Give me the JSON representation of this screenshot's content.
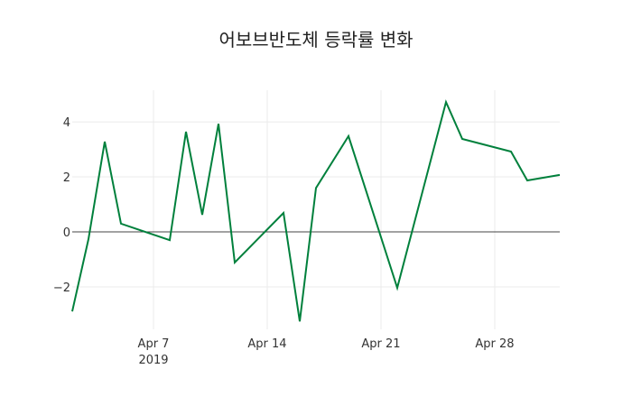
{
  "chart_data": {
    "type": "line",
    "title": "어보브반도체 등락률 변화",
    "xlabel": "",
    "ylabel": "",
    "x": [
      "2019-04-02",
      "2019-04-03",
      "2019-04-04",
      "2019-04-05",
      "2019-04-08",
      "2019-04-09",
      "2019-04-10",
      "2019-04-11",
      "2019-04-12",
      "2019-04-15",
      "2019-04-16",
      "2019-04-17",
      "2019-04-19",
      "2019-04-22",
      "2019-04-25",
      "2019-04-26",
      "2019-04-29",
      "2019-04-30",
      "2019-05-02"
    ],
    "series": [
      {
        "name": "등락률",
        "color": "#00803c",
        "values": [
          -2.89,
          -0.26,
          3.28,
          0.3,
          -0.3,
          3.64,
          0.62,
          3.93,
          -1.11,
          0.69,
          -3.25,
          1.6,
          3.48,
          -2.03,
          4.72,
          3.38,
          2.92,
          1.87,
          2.07
        ]
      }
    ],
    "xlim": [
      "2019-04-02",
      "2019-05-02"
    ],
    "ylim": [
      -3.54,
      5.15
    ],
    "x_ticks": [
      {
        "date": "2019-04-07",
        "label": "Apr 7",
        "sublabel": "2019"
      },
      {
        "date": "2019-04-14",
        "label": "Apr 14",
        "sublabel": ""
      },
      {
        "date": "2019-04-21",
        "label": "Apr 21",
        "sublabel": ""
      },
      {
        "date": "2019-04-28",
        "label": "Apr 28",
        "sublabel": ""
      }
    ],
    "y_ticks": [
      -2,
      0,
      2,
      4
    ],
    "y_tick_labels": [
      "−2",
      "0",
      "2",
      "4"
    ],
    "grid": true,
    "zero_line": true,
    "legend": false
  }
}
